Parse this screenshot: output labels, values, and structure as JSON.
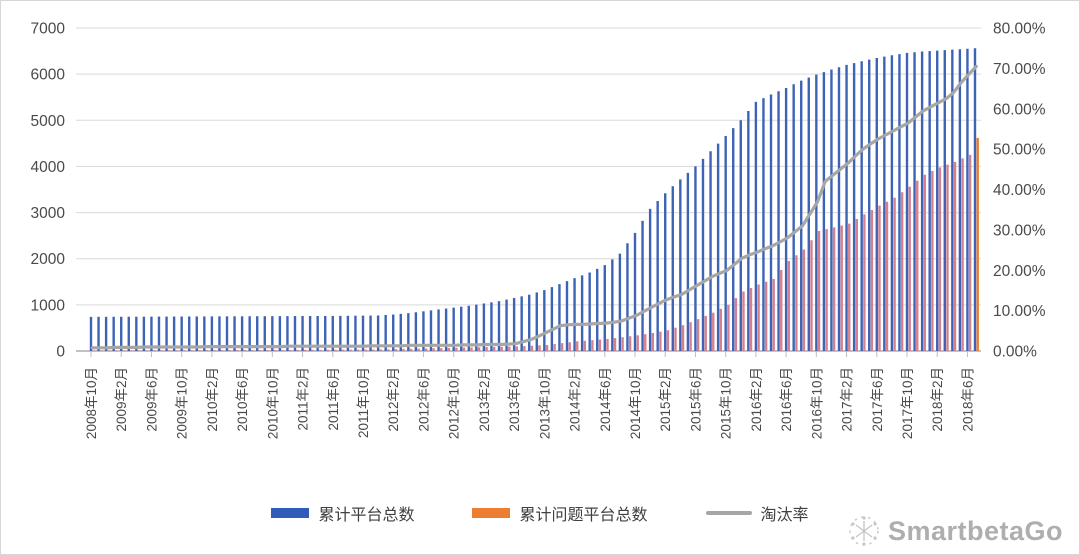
{
  "watermark": {
    "brand": "SmartbetaGo"
  },
  "legend": [
    {
      "label": "累计平台总数",
      "color": "#2E5CB8",
      "type": "bar"
    },
    {
      "label": "累计问题平台总数",
      "color": "#ED7D31",
      "type": "bar"
    },
    {
      "label": "淘汰率",
      "color": "#A6A6A6",
      "type": "line"
    }
  ],
  "chart_data": {
    "type": "combo-bar-line",
    "title": "",
    "xlabel": "",
    "ylabel_left": "",
    "ylabel_right": "",
    "grid": true,
    "legend_position": "bottom",
    "n_points": 118,
    "x_start": "2008年10月",
    "x_tick_interval_months": 4,
    "x_tick_labels": [
      "2008年10月",
      "2009年2月",
      "2009年6月",
      "2009年10月",
      "2010年2月",
      "2010年6月",
      "2010年10月",
      "2011年2月",
      "2011年6月",
      "2011年10月",
      "2012年2月",
      "2012年6月",
      "2012年10月",
      "2013年2月",
      "2013年6月",
      "2013年10月",
      "2014年2月",
      "2014年6月",
      "2014年10月",
      "2015年2月",
      "2015年6月",
      "2015年10月",
      "2016年2月",
      "2016年6月",
      "2016年10月",
      "2017年2月",
      "2017年6月",
      "2017年10月",
      "2018年2月",
      "2018年6月"
    ],
    "left_axis": {
      "min": 0,
      "max": 7000,
      "step": 1000,
      "tick_labels": [
        "0",
        "1000",
        "2000",
        "3000",
        "4000",
        "5000",
        "6000",
        "7000"
      ]
    },
    "right_axis": {
      "min": 0,
      "max": 80,
      "step": 10,
      "tick_labels": [
        "0.00%",
        "10.00%",
        "20.00%",
        "30.00%",
        "40.00%",
        "50.00%",
        "60.00%",
        "70.00%",
        "80.00%"
      ]
    },
    "series": [
      {
        "name": "累计平台总数",
        "type": "bar",
        "axis": "left",
        "color": "#3D63B5",
        "values": [
          740,
          741,
          741,
          742,
          742,
          743,
          744,
          744,
          745,
          746,
          746,
          747,
          747,
          748,
          749,
          749,
          750,
          751,
          751,
          752,
          752,
          753,
          754,
          754,
          755,
          756,
          756,
          757,
          758,
          758,
          759,
          759,
          760,
          762,
          763,
          765,
          767,
          768,
          770,
          780,
          790,
          805,
          820,
          840,
          860,
          880,
          900,
          920,
          940,
          960,
          980,
          1005,
          1030,
          1055,
          1080,
          1115,
          1150,
          1185,
          1220,
          1270,
          1320,
          1385,
          1450,
          1515,
          1580,
          1640,
          1700,
          1780,
          1860,
          1985,
          2110,
          2335,
          2560,
          2820,
          3080,
          3250,
          3420,
          3570,
          3720,
          3860,
          4000,
          4165,
          4330,
          4495,
          4660,
          4830,
          5000,
          5200,
          5400,
          5480,
          5560,
          5630,
          5700,
          5780,
          5860,
          5925,
          5990,
          6045,
          6100,
          6150,
          6200,
          6240,
          6280,
          6315,
          6350,
          6380,
          6410,
          6435,
          6460,
          6475,
          6490,
          6500,
          6510,
          6520,
          6530,
          6540,
          6550,
          6560
        ]
      },
      {
        "name": "累计问题平台总数",
        "type": "bar",
        "axis": "left",
        "color": "#ED7D31",
        "render_color": "#D5808F",
        "values": [
          8,
          9,
          9,
          10,
          10,
          11,
          12,
          12,
          13,
          13,
          14,
          14,
          15,
          16,
          16,
          17,
          17,
          18,
          19,
          19,
          20,
          20,
          21,
          21,
          22,
          23,
          23,
          24,
          25,
          25,
          26,
          27,
          27,
          28,
          29,
          29,
          30,
          32,
          35,
          37,
          40,
          44,
          47,
          51,
          55,
          59,
          62,
          66,
          70,
          74,
          77,
          81,
          85,
          89,
          92,
          96,
          100,
          107,
          115,
          122,
          130,
          150,
          170,
          190,
          210,
          222,
          235,
          247,
          260,
          280,
          300,
          320,
          340,
          365,
          390,
          420,
          450,
          505,
          560,
          625,
          690,
          760,
          830,
          915,
          1000,
          1145,
          1290,
          1365,
          1440,
          1500,
          1560,
          1755,
          1950,
          2075,
          2200,
          2400,
          2600,
          2640,
          2680,
          2720,
          2760,
          2860,
          2960,
          3055,
          3150,
          3235,
          3320,
          3440,
          3560,
          3690,
          3820,
          3900,
          3980,
          4040,
          4100,
          4175,
          4250,
          4620
        ]
      },
      {
        "name": "淘汰率",
        "type": "line",
        "axis": "right",
        "color": "#A6A6A6",
        "values_pct": [
          0.8,
          0.8,
          0.8,
          0.9,
          0.9,
          0.9,
          0.9,
          1.0,
          1.0,
          1.0,
          1.0,
          1.0,
          1.0,
          1.0,
          1.0,
          1.1,
          1.1,
          1.1,
          1.1,
          1.1,
          1.1,
          1.1,
          1.1,
          1.1,
          1.1,
          1.1,
          1.2,
          1.2,
          1.2,
          1.2,
          1.2,
          1.2,
          1.2,
          1.2,
          1.2,
          1.2,
          1.2,
          1.3,
          1.3,
          1.3,
          1.3,
          1.3,
          1.4,
          1.4,
          1.4,
          1.4,
          1.4,
          1.4,
          1.4,
          1.5,
          1.5,
          1.5,
          1.6,
          1.6,
          1.6,
          1.7,
          1.8,
          2.3,
          2.8,
          3.6,
          4.5,
          5.4,
          6.3,
          6.5,
          6.6,
          6.6,
          6.7,
          6.8,
          6.9,
          7.1,
          7.4,
          8.1,
          8.8,
          9.8,
          10.8,
          11.8,
          12.7,
          13.4,
          14.0,
          15.1,
          16.2,
          17.3,
          18.4,
          19.2,
          20.0,
          21.5,
          23.0,
          23.8,
          24.5,
          25.3,
          26.0,
          27.0,
          28.0,
          29.5,
          31.0,
          34.0,
          37.0,
          42.0,
          43.5,
          45.0,
          46.5,
          48.3,
          50.0,
          51.3,
          52.5,
          53.5,
          54.5,
          55.5,
          56.5,
          58.0,
          59.5,
          60.5,
          61.5,
          62.5,
          64.0,
          66.5,
          68.5,
          70.5
        ]
      }
    ]
  }
}
